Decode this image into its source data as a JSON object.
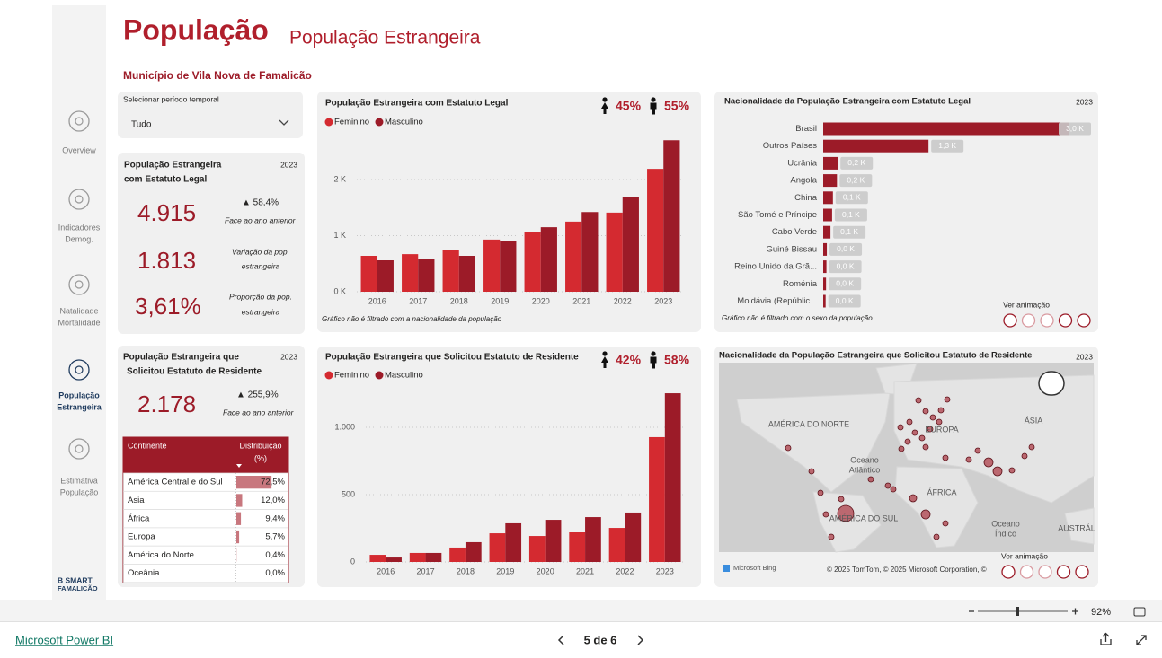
{
  "header": {
    "title": "População",
    "subtitle": "População Estrangeira",
    "municipality": "Município de Vila Nova de Famalicão"
  },
  "nav": [
    [
      "Overview"
    ],
    [
      "Indicadores",
      "Demog."
    ],
    [
      "Natalidade",
      "Mortalidade"
    ],
    [
      "População",
      "Estrangeira"
    ],
    [
      "Estimativa",
      "População"
    ]
  ],
  "logo": [
    "B SMART",
    "FAMALICÃO"
  ],
  "filter": {
    "label": "Selecionar período temporal",
    "value": "Tudo"
  },
  "kpi_legal": {
    "title_lines": [
      "População Estrangeira",
      "com Estatuto Legal"
    ],
    "year": "2023",
    "total": "4.915",
    "change": "▲ 58,4%",
    "change_note": "Face ao ano anterior",
    "variation": "1.813",
    "variation_note": [
      "Variação da pop.",
      "estrangeira"
    ],
    "share": "3,61%",
    "share_note": [
      "Proporção da pop.",
      "estrangeira"
    ]
  },
  "kpi_resident": {
    "title_lines": [
      "População Estrangeira que",
      "Solicitou Estatuto de Residente"
    ],
    "year": "2023",
    "total": "2.178",
    "change": "▲ 255,9%",
    "change_note": "Face ao ano anterior"
  },
  "map": {
    "title": "Nacionalidade da População Estrangeira que Solicitou Estatuto de Residente",
    "year": "2023",
    "labels": [
      [
        "AMÉRICA DO NORTE"
      ],
      [
        "EUROPA"
      ],
      [
        "ÁSIA"
      ],
      [
        "Oceano",
        "Atlântico"
      ],
      [
        "ÁFRICA"
      ],
      [
        "AMÉRICA DO SUL"
      ],
      [
        "Oceano",
        "Índico"
      ],
      [
        "AUSTRÁL"
      ]
    ],
    "bing": "Microsoft Bing",
    "attribution": "© 2025 TomTom, © 2025 Microsoft Corporation, ©",
    "animation": "Ver animação"
  },
  "footer": {
    "zoom": "92%",
    "page": "5 de 6",
    "brand": "Microsoft Power BI"
  },
  "chart_data": [
    {
      "type": "bar",
      "title": "População Estrangeira com Estatuto Legal",
      "annotations": [
        "45%",
        "55%"
      ],
      "categories": [
        "2016",
        "2017",
        "2018",
        "2019",
        "2020",
        "2021",
        "2022",
        "2023"
      ],
      "series": [
        {
          "name": "Feminino",
          "color": "#d42a30",
          "values": [
            640,
            670,
            740,
            930,
            1070,
            1250,
            1410,
            2190
          ]
        },
        {
          "name": "Masculino",
          "color": "#9c1b28",
          "values": [
            560,
            580,
            640,
            910,
            1150,
            1420,
            1680,
            2700
          ]
        }
      ],
      "ylim": [
        0,
        2800
      ],
      "yticks": [
        {
          "value": 0,
          "label": "0 K"
        },
        {
          "value": 1000,
          "label": "1 K"
        },
        {
          "value": 2000,
          "label": "2 K"
        }
      ],
      "grid": true,
      "legend": "top-left",
      "note": "Gráfico não é filtrado com a nacionalidade da população"
    },
    {
      "type": "bar",
      "title": "População Estrangeira que Solicitou Estatuto de Residente",
      "annotations": [
        "42%",
        "58%"
      ],
      "categories": [
        "2016",
        "2017",
        "2018",
        "2019",
        "2020",
        "2021",
        "2022",
        "2023"
      ],
      "series": [
        {
          "name": "Feminino",
          "color": "#d42a30",
          "values": [
            53,
            67,
            107,
            213,
            193,
            220,
            253,
            927
          ]
        },
        {
          "name": "Masculino",
          "color": "#9c1b28",
          "values": [
            33,
            67,
            147,
            287,
            313,
            333,
            367,
            1253
          ]
        }
      ],
      "ylim": [
        0,
        1300
      ],
      "yticks": [
        0,
        500,
        {
          "value": 1000,
          "label": "1.000"
        }
      ],
      "grid": true,
      "legend": "top-left"
    },
    {
      "type": "hbar",
      "title": "Nacionalidade da População Estrangeira com Estatuto Legal",
      "subtitle": "2023",
      "categories": [
        "Brasil",
        "Outros Países",
        "Ucrânia",
        "Angola",
        "China",
        "São Tomé e Príncipe",
        "Cabo Verde",
        "Guiné Bissau",
        "Reino Unido da Grã...",
        "Roménia",
        "Moldávia (Repúblic..."
      ],
      "values": [
        3040,
        1300,
        180,
        170,
        120,
        110,
        90,
        45,
        40,
        35,
        30
      ],
      "value_labels": [
        "3,0 K",
        "1,3 K",
        "0,2 K",
        "0,2 K",
        "0,1 K",
        "0,1 K",
        "0,1 K",
        "0,0 K",
        "0,0 K",
        "0,0 K",
        "0,0 K"
      ],
      "color": "#9c1b28",
      "note": "Gráfico não é filtrado com o sexo da população",
      "animation": "Ver animação"
    },
    {
      "type": "table-bar",
      "columns": [
        [
          "Continente"
        ],
        [
          "Distribuição",
          "(%)"
        ]
      ],
      "categories": [
        "América Central e do Sul",
        "Ásia",
        "África",
        "Europa",
        "América do Norte",
        "Oceânia"
      ],
      "values": [
        72.5,
        12.0,
        9.4,
        5.7,
        0.4,
        0.0
      ],
      "value_labels": [
        "72,5%",
        "12,0%",
        "9,4%",
        "5,7%",
        "0,4%",
        "0,0%"
      ],
      "color": "#c8777e"
    }
  ]
}
